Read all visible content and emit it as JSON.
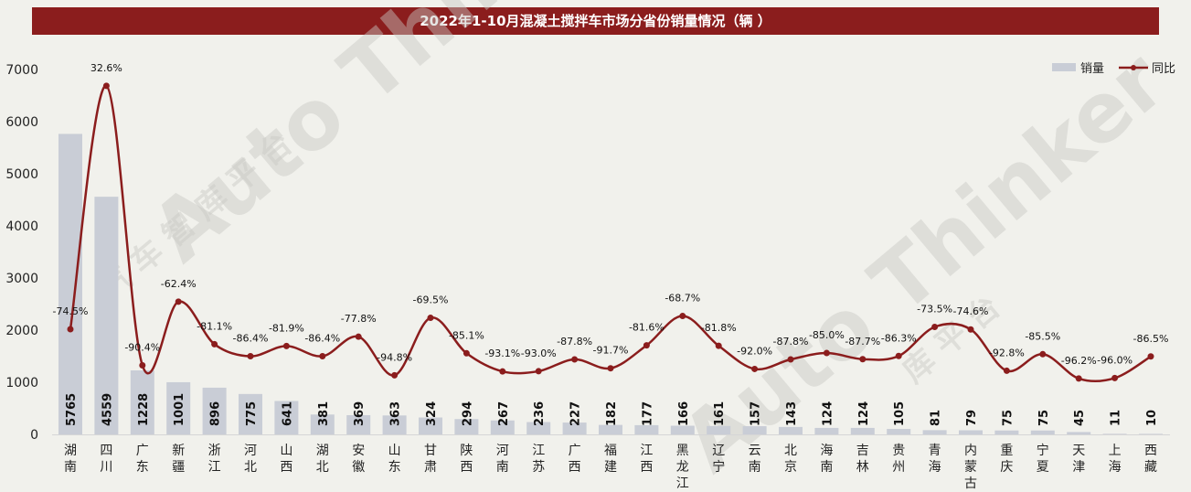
{
  "chart_data": {
    "type": "bar+line",
    "title": "2022年1-10月混凝土搅拌车市场分省份销量情况（辆 ）",
    "categories": [
      [
        "湖",
        "南"
      ],
      [
        "四",
        "川"
      ],
      [
        "广",
        "东"
      ],
      [
        "新",
        "疆"
      ],
      [
        "浙",
        "江"
      ],
      [
        "河",
        "北"
      ],
      [
        "山",
        "西"
      ],
      [
        "湖",
        "北"
      ],
      [
        "安",
        "徽"
      ],
      [
        "山",
        "东"
      ],
      [
        "甘",
        "肃"
      ],
      [
        "陕",
        "西"
      ],
      [
        "河",
        "南"
      ],
      [
        "江",
        "苏"
      ],
      [
        "广",
        "西"
      ],
      [
        "福",
        "建"
      ],
      [
        "江",
        "西"
      ],
      [
        "黑",
        "龙",
        "江"
      ],
      [
        "辽",
        "宁"
      ],
      [
        "云",
        "南"
      ],
      [
        "北",
        "京"
      ],
      [
        "海",
        "南"
      ],
      [
        "吉",
        "林"
      ],
      [
        "贵",
        "州"
      ],
      [
        "青",
        "海"
      ],
      [
        "内",
        "蒙",
        "古"
      ],
      [
        "重",
        "庆"
      ],
      [
        "宁",
        "夏"
      ],
      [
        "天",
        "津"
      ],
      [
        "上",
        "海"
      ],
      [
        "西",
        "藏"
      ]
    ],
    "series": [
      {
        "name": "销量",
        "type": "bar",
        "color": "#c9cdd6",
        "values": [
          5765,
          4559,
          1228,
          1001,
          896,
          775,
          641,
          381,
          369,
          363,
          324,
          294,
          267,
          236,
          227,
          182,
          177,
          166,
          161,
          157,
          143,
          124,
          124,
          105,
          81,
          79,
          75,
          75,
          45,
          11,
          10
        ]
      },
      {
        "name": "同比",
        "type": "line",
        "color": "#8b1d1d",
        "values": [
          -74.5,
          32.6,
          -90.4,
          -62.4,
          -81.1,
          -86.4,
          -81.9,
          -86.4,
          -77.8,
          -94.8,
          -69.5,
          -85.1,
          -93.1,
          -93.0,
          -87.8,
          -91.7,
          -81.6,
          -68.7,
          -81.8,
          -92.0,
          -87.8,
          -85.0,
          -87.7,
          -86.3,
          -73.5,
          -74.6,
          -92.8,
          -85.5,
          -96.2,
          -96.0,
          -86.5
        ],
        "labels": [
          "-74.5%",
          "32.6%",
          "-90.4%",
          "-62.4%",
          "-81.1%",
          "-86.4%",
          "-81.9%",
          "-86.4%",
          "-77.8%",
          "-94.8%",
          "-69.5%",
          "-85.1%",
          "-93.1%",
          "-93.0%",
          "-87.8%",
          "-91.7%",
          "-81.6%",
          "-68.7%",
          "-81.8%",
          "-92.0%",
          "-87.8%",
          "-85.0%",
          "-87.7%",
          "-86.3%",
          "-73.5%",
          "-74.6%",
          "-92.8%",
          "-85.5%",
          "-96.2%",
          "-96.0%",
          "-86.5%"
        ]
      }
    ],
    "y_ticks": [
      "0",
      "1000",
      "2000",
      "3000",
      "4000",
      "5000",
      "6000",
      "7000"
    ],
    "ylim": [
      0,
      7000
    ],
    "y2lim": [
      -120.8,
      39.8
    ],
    "legend_position": "top-right",
    "grid": false
  },
  "watermark": "Auto Thinker 汽车智库平台"
}
